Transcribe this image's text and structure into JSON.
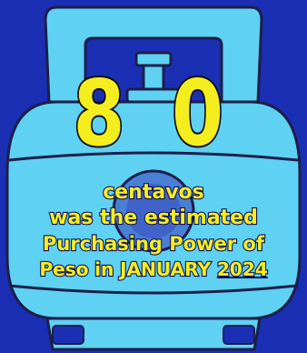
{
  "headline": {
    "value": "8 0"
  },
  "caption": {
    "line1": "centavos",
    "line2": "was the estimated",
    "line3": "Purchasing Power of",
    "line4_prefix": "Peso in JANUARY ",
    "line4_year": "2024"
  },
  "colors": {
    "background": "#1a2fb3",
    "tank": "#5fd1f2",
    "tank_outline": "#1b1f4a",
    "text": "#f5ee1e"
  },
  "icons": {
    "illustration": "lpg-gas-tank-icon"
  }
}
